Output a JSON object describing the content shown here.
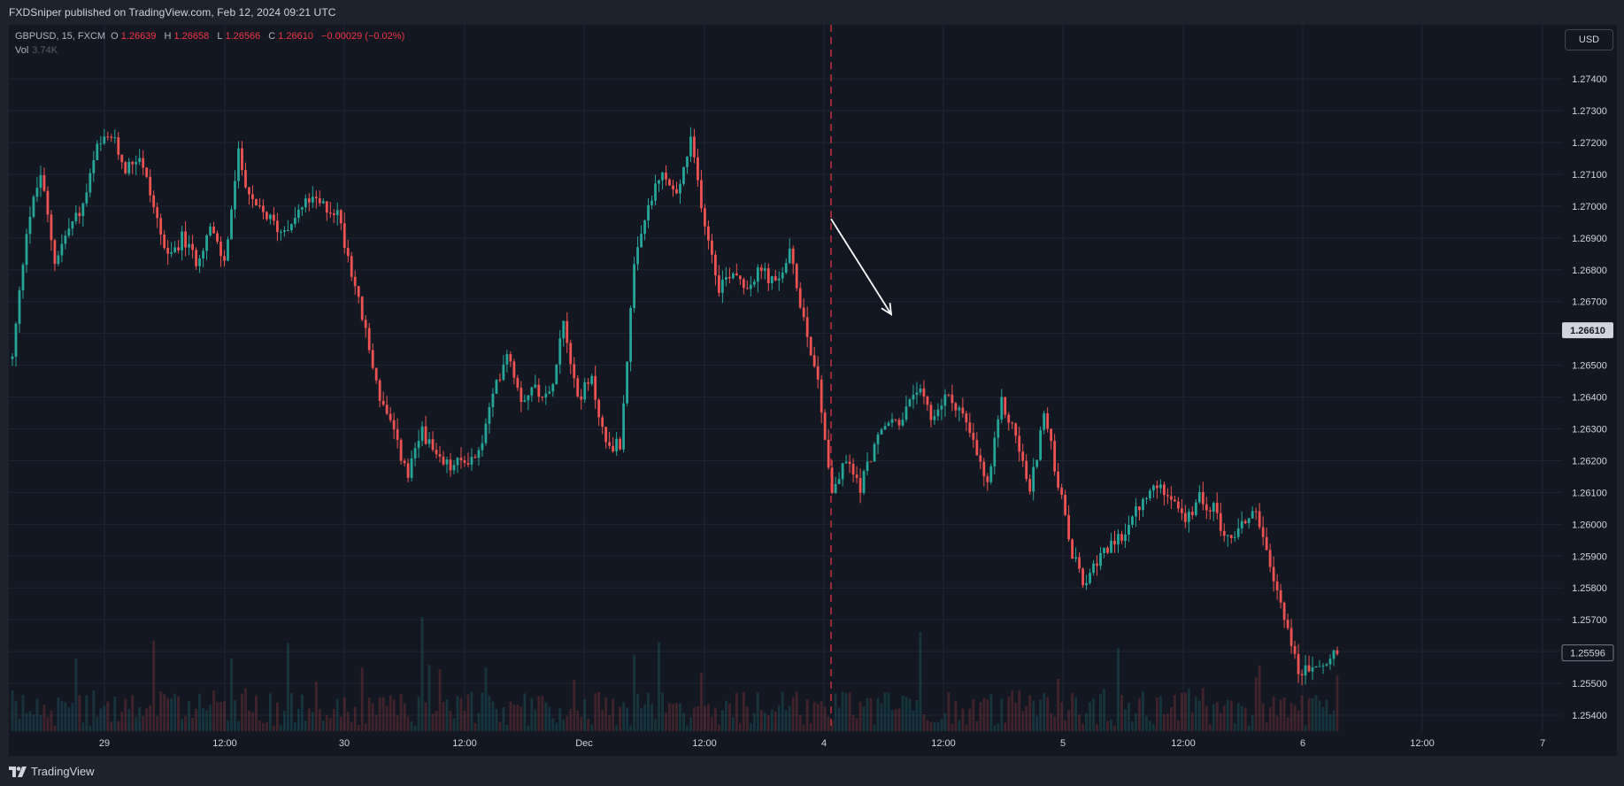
{
  "header": {
    "publisher_line": "FXDSniper published on TradingView.com, Feb 12, 2024 09:21 UTC"
  },
  "legend": {
    "symbol": "GBPUSD, 15, FXCM",
    "o_label": "O",
    "o_value": "1.26639",
    "h_label": "H",
    "h_value": "1.26658",
    "l_label": "L",
    "l_value": "1.26566",
    "c_label": "C",
    "c_value": "1.26610",
    "change": "−0.00029 (−0.02%)"
  },
  "volume_legend": {
    "label": "Vol",
    "value": "3.74K"
  },
  "currency_button": "USD",
  "footer": {
    "brand": "TradingView"
  },
  "colors": {
    "up": "#26a69a",
    "down": "#ef5350",
    "grid": "#1f2431",
    "background": "#131722",
    "text": "#d1d4dc",
    "marker": "#f23645"
  },
  "chart_data": {
    "type": "candlestick",
    "symbol": "GBPUSD",
    "timeframe": "15",
    "x_ticks": [
      "29",
      "12:00",
      "30",
      "12:00",
      "Dec",
      "12:00",
      "4",
      "12:00",
      "5",
      "12:00",
      "6",
      "12:00",
      "7"
    ],
    "y_ticks": [
      "1.27400",
      "1.27300",
      "1.27200",
      "1.27100",
      "1.27000",
      "1.26900",
      "1.26800",
      "1.26700",
      "1.26600",
      "1.26500",
      "1.26400",
      "1.26300",
      "1.26200",
      "1.26100",
      "1.26000",
      "1.25900",
      "1.25800",
      "1.25700",
      "1.25600",
      "1.25500",
      "1.25400"
    ],
    "ylim": [
      1.2535,
      1.2757
    ],
    "current_price_label": "1.26610",
    "secondary_price_label": "1.25596",
    "close_path": [
      [
        0,
        1.2652
      ],
      [
        4,
        1.2693
      ],
      [
        8,
        1.271
      ],
      [
        12,
        1.2683
      ],
      [
        16,
        1.2693
      ],
      [
        20,
        1.27
      ],
      [
        24,
        1.2718
      ],
      [
        28,
        1.2722
      ],
      [
        32,
        1.2712
      ],
      [
        36,
        1.2716
      ],
      [
        40,
        1.27
      ],
      [
        44,
        1.2683
      ],
      [
        48,
        1.269
      ],
      [
        52,
        1.2683
      ],
      [
        56,
        1.2693
      ],
      [
        60,
        1.2682
      ],
      [
        64,
        1.2716
      ],
      [
        68,
        1.27
      ],
      [
        72,
        1.2697
      ],
      [
        76,
        1.2692
      ],
      [
        80,
        1.2697
      ],
      [
        84,
        1.2702
      ],
      [
        88,
        1.27
      ],
      [
        92,
        1.2698
      ],
      [
        96,
        1.268
      ],
      [
        100,
        1.266
      ],
      [
        104,
        1.264
      ],
      [
        108,
        1.2628
      ],
      [
        112,
        1.2615
      ],
      [
        116,
        1.263
      ],
      [
        120,
        1.262
      ],
      [
        124,
        1.2618
      ],
      [
        128,
        1.262
      ],
      [
        132,
        1.2622
      ],
      [
        136,
        1.264
      ],
      [
        140,
        1.2655
      ],
      [
        144,
        1.264
      ],
      [
        148,
        1.2643
      ],
      [
        152,
        1.264
      ],
      [
        156,
        1.2665
      ],
      [
        160,
        1.264
      ],
      [
        164,
        1.2645
      ],
      [
        168,
        1.2625
      ],
      [
        172,
        1.2625
      ],
      [
        176,
        1.268
      ],
      [
        180,
        1.27
      ],
      [
        184,
        1.271
      ],
      [
        188,
        1.2703
      ],
      [
        192,
        1.272
      ],
      [
        196,
        1.2695
      ],
      [
        200,
        1.2675
      ],
      [
        204,
        1.268
      ],
      [
        208,
        1.2675
      ],
      [
        212,
        1.268
      ],
      [
        216,
        1.2675
      ],
      [
        220,
        1.2685
      ],
      [
        224,
        1.2665
      ],
      [
        228,
        1.2645
      ],
      [
        232,
        1.261
      ],
      [
        236,
        1.262
      ],
      [
        240,
        1.2612
      ],
      [
        244,
        1.2625
      ],
      [
        248,
        1.2632
      ],
      [
        252,
        1.2633
      ],
      [
        256,
        1.2643
      ],
      [
        260,
        1.2633
      ],
      [
        264,
        1.264
      ],
      [
        268,
        1.2637
      ],
      [
        272,
        1.2625
      ],
      [
        276,
        1.2612
      ],
      [
        280,
        1.2638
      ],
      [
        284,
        1.2628
      ],
      [
        288,
        1.261
      ],
      [
        292,
        1.2635
      ],
      [
        296,
        1.2613
      ],
      [
        300,
        1.259
      ],
      [
        304,
        1.258
      ],
      [
        308,
        1.2592
      ],
      [
        312,
        1.2593
      ],
      [
        316,
        1.26
      ],
      [
        320,
        1.2607
      ],
      [
        324,
        1.2612
      ],
      [
        328,
        1.261
      ],
      [
        332,
        1.26
      ],
      [
        336,
        1.2608
      ],
      [
        340,
        1.2605
      ],
      [
        344,
        1.2595
      ],
      [
        348,
        1.26
      ],
      [
        352,
        1.2605
      ],
      [
        356,
        1.2585
      ],
      [
        360,
        1.2572
      ],
      [
        364,
        1.2553
      ],
      [
        368,
        1.2555
      ],
      [
        372,
        1.2556
      ],
      [
        375,
        1.2561
      ]
    ],
    "annotations": [
      "vertical dashed marker at 4 Dec 00:00",
      "arrow drawn down from 1.26960 to 1.26660"
    ]
  }
}
